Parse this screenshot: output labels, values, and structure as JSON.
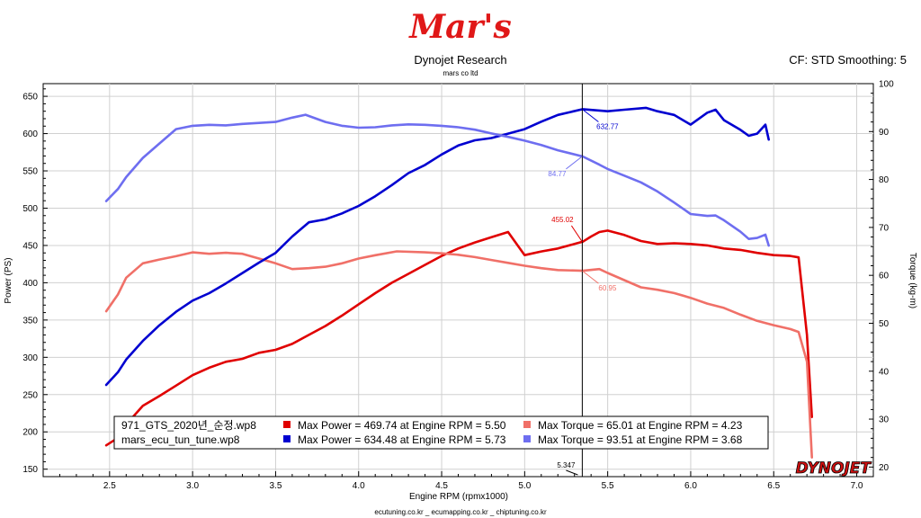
{
  "header": {
    "logo_text": "Mar's",
    "title": "Dynojet Research",
    "subtitle": "mars co ltd",
    "settings": "CF: STD Smoothing: 5",
    "brand_logo": "DYNOJET"
  },
  "footer": {
    "text": "ecutuning.co.kr _ ecumapping.co.kr _ chiptuning.co.kr"
  },
  "colors": {
    "red": "#e00000",
    "light_red": "#f07068",
    "blue": "#0000d0",
    "light_blue": "#6e6ef0"
  },
  "chart_data": {
    "type": "line",
    "xlabel": "Engine RPM (rpmx1000)",
    "ylabel_left": "Power (PS)",
    "ylabel_right": "Torque (kg-m)",
    "xlim": [
      2.1,
      7.1
    ],
    "ylim_left": [
      140,
      667
    ],
    "ylim_right": [
      18,
      100
    ],
    "x_ticks": [
      "2.5",
      "3.0",
      "3.5",
      "4.0",
      "4.5",
      "5.0",
      "5.5",
      "6.0",
      "6.5",
      "7.0"
    ],
    "y_left_ticks": [
      "150",
      "200",
      "250",
      "300",
      "350",
      "400",
      "450",
      "500",
      "550",
      "600",
      "650"
    ],
    "y_right_ticks": [
      "20",
      "30",
      "40",
      "50",
      "60",
      "70",
      "80",
      "90",
      "100"
    ],
    "grid": true,
    "cursor": {
      "rpm": 5.347,
      "label": "5.347",
      "annotations": [
        {
          "text": "632.77",
          "series": 2
        },
        {
          "text": "84.77",
          "series": 3
        },
        {
          "text": "455.02",
          "series": 0
        },
        {
          "text": "60.95",
          "series": 1
        }
      ]
    },
    "series": [
      {
        "name": "971_GTS_2020년_순정.wp8",
        "quantity": "Power",
        "axis": "left",
        "color": "#e00000",
        "summary": "Max Power = 469.74 at Engine RPM = 5.50",
        "points": [
          [
            2.48,
            182
          ],
          [
            2.55,
            192
          ],
          [
            2.6,
            210
          ],
          [
            2.7,
            235
          ],
          [
            2.8,
            248
          ],
          [
            2.9,
            262
          ],
          [
            3.0,
            276
          ],
          [
            3.1,
            286
          ],
          [
            3.2,
            294
          ],
          [
            3.3,
            298
          ],
          [
            3.4,
            306
          ],
          [
            3.5,
            310
          ],
          [
            3.6,
            318
          ],
          [
            3.7,
            330
          ],
          [
            3.8,
            342
          ],
          [
            3.9,
            356
          ],
          [
            4.0,
            371
          ],
          [
            4.1,
            386
          ],
          [
            4.2,
            400
          ],
          [
            4.3,
            412
          ],
          [
            4.4,
            424
          ],
          [
            4.5,
            436
          ],
          [
            4.6,
            446
          ],
          [
            4.7,
            454
          ],
          [
            4.8,
            461
          ],
          [
            4.9,
            468
          ],
          [
            5.0,
            437
          ],
          [
            5.1,
            442
          ],
          [
            5.2,
            446
          ],
          [
            5.3,
            452
          ],
          [
            5.35,
            455
          ],
          [
            5.4,
            462
          ],
          [
            5.45,
            468
          ],
          [
            5.5,
            470
          ],
          [
            5.6,
            464
          ],
          [
            5.7,
            456
          ],
          [
            5.8,
            452
          ],
          [
            5.9,
            453
          ],
          [
            6.0,
            452
          ],
          [
            6.1,
            450
          ],
          [
            6.2,
            446
          ],
          [
            6.3,
            444
          ],
          [
            6.4,
            440
          ],
          [
            6.5,
            437
          ],
          [
            6.6,
            436
          ],
          [
            6.65,
            434
          ],
          [
            6.7,
            330
          ],
          [
            6.73,
            220
          ]
        ]
      },
      {
        "name": "971_GTS_2020년_순정.wp8",
        "quantity": "Torque",
        "axis": "right",
        "color": "#f07068",
        "summary": "Max Torque = 65.01 at Engine RPM = 4.23",
        "points": [
          [
            2.48,
            52.5
          ],
          [
            2.55,
            56
          ],
          [
            2.6,
            59.5
          ],
          [
            2.7,
            62.5
          ],
          [
            2.8,
            63.3
          ],
          [
            2.9,
            64
          ],
          [
            3.0,
            64.8
          ],
          [
            3.1,
            64.5
          ],
          [
            3.2,
            64.7
          ],
          [
            3.3,
            64.5
          ],
          [
            3.4,
            63.5
          ],
          [
            3.5,
            62.5
          ],
          [
            3.6,
            61.3
          ],
          [
            3.7,
            61.5
          ],
          [
            3.8,
            61.8
          ],
          [
            3.9,
            62.5
          ],
          [
            4.0,
            63.5
          ],
          [
            4.1,
            64.2
          ],
          [
            4.23,
            65.0
          ],
          [
            4.4,
            64.8
          ],
          [
            4.5,
            64.6
          ],
          [
            4.6,
            64.3
          ],
          [
            4.7,
            63.8
          ],
          [
            4.8,
            63.2
          ],
          [
            4.9,
            62.6
          ],
          [
            5.0,
            62.0
          ],
          [
            5.1,
            61.5
          ],
          [
            5.2,
            61.1
          ],
          [
            5.35,
            60.95
          ],
          [
            5.45,
            61.3
          ],
          [
            5.5,
            60.5
          ],
          [
            5.6,
            59
          ],
          [
            5.7,
            57.5
          ],
          [
            5.8,
            57
          ],
          [
            5.9,
            56.3
          ],
          [
            6.0,
            55.3
          ],
          [
            6.1,
            54.1
          ],
          [
            6.2,
            53.2
          ],
          [
            6.3,
            51.8
          ],
          [
            6.4,
            50.5
          ],
          [
            6.5,
            49.6
          ],
          [
            6.6,
            48.8
          ],
          [
            6.65,
            48.2
          ],
          [
            6.7,
            42
          ],
          [
            6.73,
            22
          ]
        ]
      },
      {
        "name": "mars_ecu_tun_tune.wp8",
        "quantity": "Power",
        "axis": "left",
        "color": "#0000d0",
        "summary": "Max Power = 634.48 at Engine RPM = 5.73",
        "points": [
          [
            2.48,
            263
          ],
          [
            2.55,
            280
          ],
          [
            2.6,
            297
          ],
          [
            2.7,
            322
          ],
          [
            2.8,
            343
          ],
          [
            2.9,
            361
          ],
          [
            3.0,
            376
          ],
          [
            3.1,
            386
          ],
          [
            3.2,
            399
          ],
          [
            3.3,
            413
          ],
          [
            3.4,
            427
          ],
          [
            3.5,
            440
          ],
          [
            3.6,
            462
          ],
          [
            3.7,
            481
          ],
          [
            3.8,
            485
          ],
          [
            3.9,
            493
          ],
          [
            4.0,
            503
          ],
          [
            4.1,
            516
          ],
          [
            4.2,
            531
          ],
          [
            4.3,
            547
          ],
          [
            4.4,
            558
          ],
          [
            4.5,
            572
          ],
          [
            4.6,
            584
          ],
          [
            4.7,
            591
          ],
          [
            4.8,
            594
          ],
          [
            4.9,
            600
          ],
          [
            5.0,
            606
          ],
          [
            5.1,
            616
          ],
          [
            5.2,
            625
          ],
          [
            5.35,
            632.8
          ],
          [
            5.45,
            631
          ],
          [
            5.5,
            630
          ],
          [
            5.6,
            632
          ],
          [
            5.73,
            634.5
          ],
          [
            5.8,
            630
          ],
          [
            5.9,
            625
          ],
          [
            6.0,
            612
          ],
          [
            6.1,
            628
          ],
          [
            6.15,
            632
          ],
          [
            6.2,
            618
          ],
          [
            6.3,
            605
          ],
          [
            6.35,
            597
          ],
          [
            6.4,
            600
          ],
          [
            6.45,
            612
          ],
          [
            6.47,
            592
          ]
        ]
      },
      {
        "name": "mars_ecu_tun_tune.wp8",
        "quantity": "Torque",
        "axis": "right",
        "color": "#6e6ef0",
        "summary": "Max Torque = 93.51 at Engine RPM = 3.68",
        "points": [
          [
            2.48,
            75.5
          ],
          [
            2.55,
            78
          ],
          [
            2.6,
            80.5
          ],
          [
            2.7,
            84.5
          ],
          [
            2.8,
            87.5
          ],
          [
            2.9,
            90.5
          ],
          [
            3.0,
            91.2
          ],
          [
            3.1,
            91.4
          ],
          [
            3.2,
            91.3
          ],
          [
            3.3,
            91.6
          ],
          [
            3.4,
            91.8
          ],
          [
            3.5,
            92.0
          ],
          [
            3.6,
            92.9
          ],
          [
            3.68,
            93.5
          ],
          [
            3.8,
            92.0
          ],
          [
            3.9,
            91.2
          ],
          [
            4.0,
            90.8
          ],
          [
            4.1,
            90.9
          ],
          [
            4.2,
            91.3
          ],
          [
            4.3,
            91.5
          ],
          [
            4.4,
            91.4
          ],
          [
            4.5,
            91.2
          ],
          [
            4.6,
            90.9
          ],
          [
            4.7,
            90.4
          ],
          [
            4.8,
            89.6
          ],
          [
            4.9,
            88.9
          ],
          [
            5.0,
            88.1
          ],
          [
            5.1,
            87.2
          ],
          [
            5.2,
            86.1
          ],
          [
            5.35,
            84.8
          ],
          [
            5.45,
            83.1
          ],
          [
            5.5,
            82.2
          ],
          [
            5.6,
            80.8
          ],
          [
            5.7,
            79.4
          ],
          [
            5.8,
            77.5
          ],
          [
            5.9,
            75.2
          ],
          [
            6.0,
            72.8
          ],
          [
            6.1,
            72.4
          ],
          [
            6.15,
            72.5
          ],
          [
            6.2,
            71.5
          ],
          [
            6.3,
            69.1
          ],
          [
            6.35,
            67.6
          ],
          [
            6.4,
            67.8
          ],
          [
            6.45,
            68.5
          ],
          [
            6.47,
            66.2
          ]
        ]
      }
    ],
    "legend": {
      "placement": "bottom-left",
      "rows": [
        {
          "file": "971_GTS_2020년_순정.wp8",
          "power": "Max Power = 469.74 at Engine RPM = 5.50",
          "torque": "Max Torque = 65.01 at Engine RPM = 4.23"
        },
        {
          "file": "mars_ecu_tun_tune.wp8",
          "power": "Max Power = 634.48 at Engine RPM = 5.73",
          "torque": "Max Torque = 93.51 at Engine RPM = 3.68"
        }
      ]
    }
  }
}
